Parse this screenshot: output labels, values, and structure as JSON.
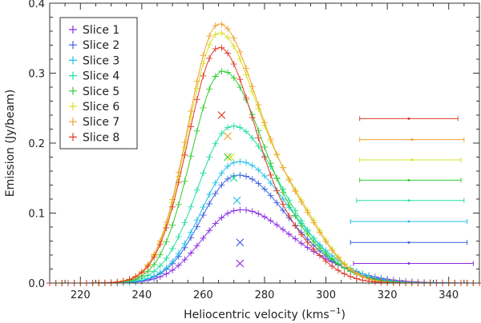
{
  "chart_data": {
    "type": "line",
    "title": "",
    "xlabel": "Heliocentric velocity (kms",
    "xlabel_sup": "−1",
    "xlabel_close": ")",
    "ylabel": "Emission (Jy/beam)",
    "xlim": [
      210,
      350
    ],
    "ylim": [
      0,
      0.4
    ],
    "xticks": [
      "220",
      "240",
      "260",
      "280",
      "300",
      "320",
      "340"
    ],
    "yticks": [
      "0.0",
      "0.1",
      "0.2",
      "0.3",
      "0.4"
    ],
    "legend_position": "top-left",
    "series": [
      {
        "name": "Slice 1",
        "color": "#8a2be2",
        "peak": 0.089,
        "center": 270,
        "sl": 11,
        "sr": 14,
        "tail": 0.35,
        "tailc": 290,
        "tails": 16,
        "marker": {
          "x": 272,
          "y": 0.028
        },
        "bar": {
          "x": 327,
          "lo": 309,
          "hi": 348,
          "y": 0.028
        }
      },
      {
        "name": "Slice 2",
        "color": "#3a5fe0",
        "peak": 0.142,
        "center": 270,
        "sl": 11,
        "sr": 14,
        "tail": 0.22,
        "tailc": 290,
        "tails": 14,
        "marker": {
          "x": 272,
          "y": 0.058
        },
        "bar": {
          "x": 327,
          "lo": 308,
          "hi": 346,
          "y": 0.058
        }
      },
      {
        "name": "Slice 3",
        "color": "#20c0e8",
        "peak": 0.158,
        "center": 270,
        "sl": 11,
        "sr": 14,
        "tail": 0.25,
        "tailc": 290,
        "tails": 14,
        "marker": {
          "x": 271,
          "y": 0.118
        },
        "bar": {
          "x": 327,
          "lo": 308,
          "hi": 346,
          "y": 0.088
        }
      },
      {
        "name": "Slice 4",
        "color": "#20e0a0",
        "peak": 0.218,
        "center": 269,
        "sl": 11,
        "sr": 14,
        "tail": 0.15,
        "tailc": 291,
        "tails": 12,
        "marker": {
          "x": 270,
          "y": 0.15
        },
        "bar": {
          "x": 327,
          "lo": 310,
          "hi": 345,
          "y": 0.118
        }
      },
      {
        "name": "Slice 5",
        "color": "#33cc33",
        "peak": 0.298,
        "center": 266,
        "sl": 10,
        "sr": 13,
        "tail": 0.14,
        "tailc": 291,
        "tails": 12,
        "marker": {
          "x": 268,
          "y": 0.18
        },
        "bar": {
          "x": 327,
          "lo": 311,
          "hi": 344,
          "y": 0.147
        }
      },
      {
        "name": "Slice 6",
        "color": "#d8e020",
        "peak": 0.355,
        "center": 265,
        "sl": 10,
        "sr": 13,
        "tail": 0.22,
        "tailc": 291,
        "tails": 10,
        "marker": {
          "x": 269,
          "y": 0.18
        },
        "bar": {
          "x": 328,
          "lo": 311,
          "hi": 344,
          "y": 0.176
        }
      },
      {
        "name": "Slice 7",
        "color": "#f0a030",
        "peak": 0.368,
        "center": 265,
        "sl": 10,
        "sr": 13,
        "tail": 0.2,
        "tailc": 291,
        "tails": 10,
        "marker": {
          "x": 268,
          "y": 0.21
        },
        "bar": {
          "x": 328,
          "lo": 311,
          "hi": 345,
          "y": 0.205
        }
      },
      {
        "name": "Slice 8",
        "color": "#e03a2a",
        "peak": 0.335,
        "center": 265,
        "sl": 10,
        "sr": 12,
        "tail": 0.13,
        "tailc": 290,
        "tails": 10,
        "marker": {
          "x": 266,
          "y": 0.24
        },
        "bar": {
          "x": 327,
          "lo": 311,
          "hi": 343,
          "y": 0.235
        }
      }
    ]
  }
}
